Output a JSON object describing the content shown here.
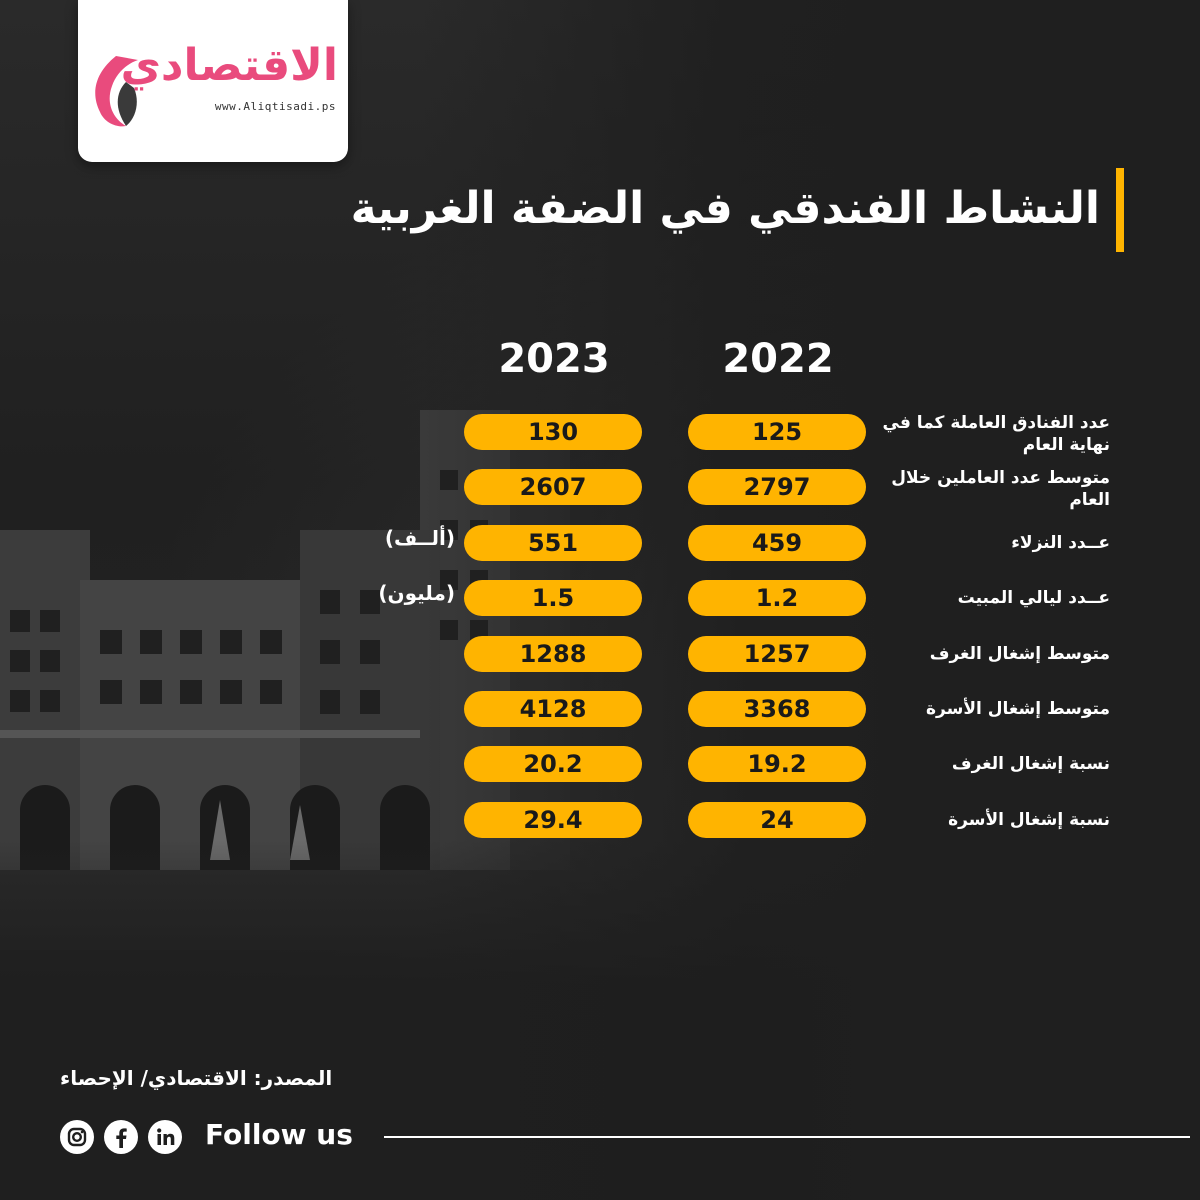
{
  "logo": {
    "name": "الاقتصادي",
    "url": "www.Aliqtisadi.ps"
  },
  "title": "النشاط الفندقي في الضفة الغربية",
  "years": [
    "2022",
    "2023"
  ],
  "rows": [
    {
      "label": "عدد الفنادق العاملة كما في نهاية العام",
      "v2022": "125",
      "v2023": "130",
      "unit": ""
    },
    {
      "label": "متوسط عدد العاملين خلال العام",
      "v2022": "2797",
      "v2023": "2607",
      "unit": ""
    },
    {
      "label": "عــدد النزلاء",
      "v2022": "459",
      "v2023": "551",
      "unit": "(ألــف)"
    },
    {
      "label": "عــدد ليالي المبيت",
      "v2022": "1.2",
      "v2023": "1.5",
      "unit": "(مليون)"
    },
    {
      "label": "متوسط إشغال الغرف",
      "v2022": "1257",
      "v2023": "1288",
      "unit": ""
    },
    {
      "label": "متوسط إشغال الأسرة",
      "v2022": "3368",
      "v2023": "4128",
      "unit": ""
    },
    {
      "label": "نسبة إشغال الغرف",
      "v2022": "19.2",
      "v2023": "20.2",
      "unit": ""
    },
    {
      "label": "نسبة إشغال الأسرة",
      "v2022": "24",
      "v2023": "29.4",
      "unit": ""
    }
  ],
  "source": "المصدر: الاقتصادي/ الإحصاء",
  "follow": "Follow us",
  "socials": [
    "instagram-icon",
    "facebook-icon",
    "linkedin-icon"
  ],
  "colors": {
    "accent": "#ffb400",
    "brand": "#e94b7d",
    "background": "#1e1e1e"
  }
}
